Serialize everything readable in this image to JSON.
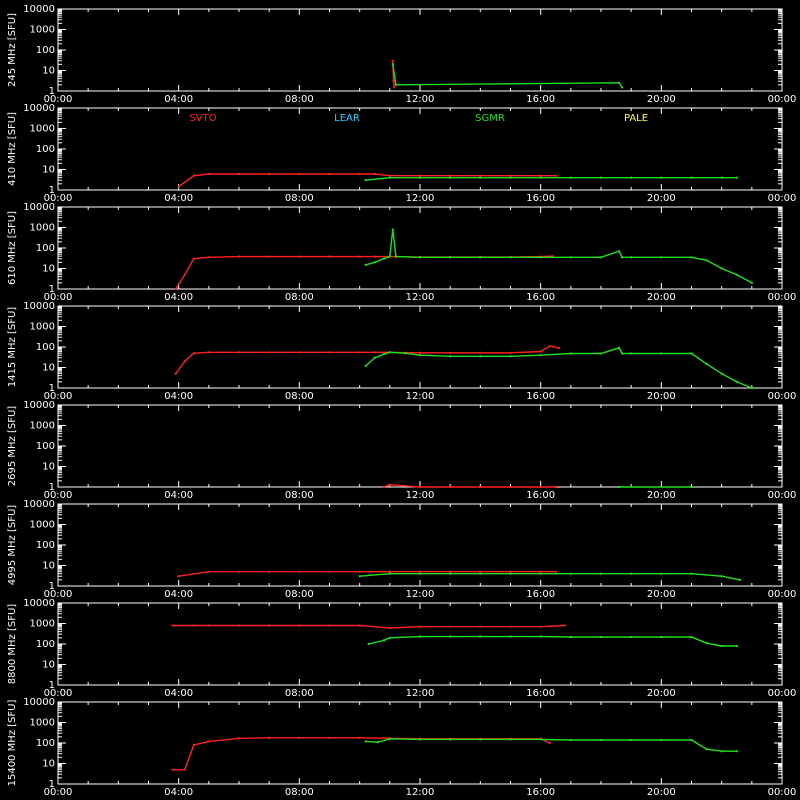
{
  "chart_data": {
    "type": "scatter",
    "x_ticks": [
      "00:00",
      "04:00",
      "08:00",
      "12:00",
      "16:00",
      "20:00",
      "00:00"
    ],
    "x_range_hours": [
      0,
      24
    ],
    "y_ticks": [
      "1",
      "10",
      "100",
      "1000",
      "10000"
    ],
    "y_range": [
      1,
      10000
    ],
    "y_scale": "log",
    "legend": [
      {
        "name": "SVTO",
        "color": "#ff2020"
      },
      {
        "name": "LEAR",
        "color": "#30d0ff"
      },
      {
        "name": "SGMR",
        "color": "#20e020"
      },
      {
        "name": "PALE",
        "color": "#ffff40"
      }
    ],
    "panels": [
      {
        "label": "245 MHz [SFU]",
        "series": [
          {
            "station": "SVTO",
            "color": "#ff2020",
            "points": [
              [
                11.1,
                30
              ],
              [
                11.12,
                3
              ],
              [
                11.15,
                1.5
              ]
            ]
          },
          {
            "station": "SGMR",
            "color": "#20e020",
            "points": [
              [
                11.1,
                20
              ],
              [
                11.2,
                2
              ],
              [
                18.6,
                2.5
              ],
              [
                18.7,
                1.5
              ]
            ]
          }
        ]
      },
      {
        "label": "410 MHz [SFU]",
        "series": [
          {
            "station": "SVTO",
            "color": "#ff2020",
            "points": [
              [
                4.0,
                1.5
              ],
              [
                4.5,
                5
              ],
              [
                5.0,
                6
              ],
              [
                6.0,
                6
              ],
              [
                7.0,
                6
              ],
              [
                8.0,
                6
              ],
              [
                9.0,
                6
              ],
              [
                10.0,
                6
              ],
              [
                10.5,
                6
              ],
              [
                11.0,
                5
              ],
              [
                12.0,
                5
              ],
              [
                13.0,
                5
              ],
              [
                14.0,
                5
              ],
              [
                15.0,
                5
              ],
              [
                16.0,
                5
              ],
              [
                16.5,
                5
              ]
            ]
          },
          {
            "station": "SGMR",
            "color": "#20e020",
            "points": [
              [
                10.2,
                3
              ],
              [
                11.0,
                4
              ],
              [
                12.0,
                4
              ],
              [
                13.0,
                4
              ],
              [
                14.0,
                4
              ],
              [
                15.0,
                4
              ],
              [
                16.0,
                4
              ],
              [
                17.0,
                4
              ],
              [
                18.0,
                4
              ],
              [
                19.0,
                4
              ],
              [
                20.0,
                4
              ],
              [
                21.0,
                4
              ],
              [
                22.0,
                4
              ],
              [
                22.5,
                4
              ]
            ]
          }
        ]
      },
      {
        "label": "610 MHz [SFU]",
        "series": [
          {
            "station": "SVTO",
            "color": "#ff2020",
            "points": [
              [
                3.9,
                1
              ],
              [
                4.2,
                5
              ],
              [
                4.5,
                30
              ],
              [
                5.0,
                35
              ],
              [
                6.0,
                38
              ],
              [
                7.0,
                38
              ],
              [
                8.0,
                38
              ],
              [
                9.0,
                38
              ],
              [
                10.0,
                38
              ],
              [
                10.5,
                38
              ],
              [
                11.0,
                38
              ],
              [
                12.0,
                36
              ],
              [
                13.0,
                36
              ],
              [
                14.0,
                36
              ],
              [
                15.0,
                36
              ],
              [
                16.0,
                38
              ],
              [
                16.4,
                40
              ]
            ]
          },
          {
            "station": "SGMR",
            "color": "#20e020",
            "points": [
              [
                10.2,
                15
              ],
              [
                10.5,
                20
              ],
              [
                10.8,
                30
              ],
              [
                11.0,
                38
              ],
              [
                11.1,
                800
              ],
              [
                11.2,
                38
              ],
              [
                12.0,
                35
              ],
              [
                13.0,
                35
              ],
              [
                14.0,
                35
              ],
              [
                15.0,
                35
              ],
              [
                16.0,
                35
              ],
              [
                17.0,
                35
              ],
              [
                18.0,
                35
              ],
              [
                18.6,
                70
              ],
              [
                18.7,
                35
              ],
              [
                19.0,
                35
              ],
              [
                20.0,
                35
              ],
              [
                21.0,
                35
              ],
              [
                21.5,
                25
              ],
              [
                22.0,
                10
              ],
              [
                22.5,
                5
              ],
              [
                23.0,
                2
              ]
            ]
          }
        ]
      },
      {
        "label": "1415 MHz [SFU]",
        "series": [
          {
            "station": "SVTO",
            "color": "#ff2020",
            "points": [
              [
                3.9,
                5
              ],
              [
                4.2,
                20
              ],
              [
                4.5,
                50
              ],
              [
                5.0,
                55
              ],
              [
                6.0,
                55
              ],
              [
                7.0,
                55
              ],
              [
                8.0,
                55
              ],
              [
                9.0,
                55
              ],
              [
                10.0,
                55
              ],
              [
                10.5,
                55
              ],
              [
                11.0,
                55
              ],
              [
                12.0,
                52
              ],
              [
                13.0,
                52
              ],
              [
                14.0,
                52
              ],
              [
                15.0,
                52
              ],
              [
                16.0,
                60
              ],
              [
                16.3,
                110
              ],
              [
                16.6,
                90
              ]
            ]
          },
          {
            "station": "SGMR",
            "color": "#20e020",
            "points": [
              [
                10.2,
                12
              ],
              [
                10.5,
                30
              ],
              [
                10.8,
                45
              ],
              [
                11.0,
                55
              ],
              [
                11.5,
                50
              ],
              [
                12.0,
                40
              ],
              [
                13.0,
                35
              ],
              [
                14.0,
                35
              ],
              [
                15.0,
                35
              ],
              [
                16.0,
                40
              ],
              [
                17.0,
                48
              ],
              [
                18.0,
                48
              ],
              [
                18.6,
                90
              ],
              [
                18.7,
                48
              ],
              [
                19.0,
                48
              ],
              [
                20.0,
                48
              ],
              [
                21.0,
                48
              ],
              [
                21.5,
                15
              ],
              [
                22.0,
                5
              ],
              [
                22.5,
                2
              ],
              [
                23.0,
                1
              ]
            ]
          }
        ]
      },
      {
        "label": "2695 MHz [SFU]",
        "series": [
          {
            "station": "SVTO",
            "color": "#ff2020",
            "points": [
              [
                10.8,
                1
              ],
              [
                11.0,
                1.3
              ],
              [
                12.0,
                1
              ],
              [
                13.0,
                1
              ],
              [
                14.0,
                1
              ],
              [
                15.0,
                1
              ],
              [
                16.0,
                1
              ],
              [
                16.5,
                1
              ]
            ]
          },
          {
            "station": "SGMR",
            "color": "#20e020",
            "points": [
              [
                18.6,
                1
              ],
              [
                21.0,
                1
              ]
            ]
          }
        ]
      },
      {
        "label": "4995 MHz [SFU]",
        "series": [
          {
            "station": "SVTO",
            "color": "#ff2020",
            "points": [
              [
                4.0,
                3
              ],
              [
                5.0,
                5
              ],
              [
                6.0,
                5
              ],
              [
                7.0,
                5
              ],
              [
                8.0,
                5
              ],
              [
                9.0,
                5
              ],
              [
                10.0,
                5
              ],
              [
                11.0,
                5
              ],
              [
                12.0,
                5
              ],
              [
                13.0,
                5
              ],
              [
                14.0,
                5
              ],
              [
                15.0,
                5
              ],
              [
                16.0,
                5
              ],
              [
                16.5,
                5
              ]
            ]
          },
          {
            "station": "SGMR",
            "color": "#20e020",
            "points": [
              [
                10.0,
                3
              ],
              [
                11.0,
                4
              ],
              [
                12.0,
                4
              ],
              [
                13.0,
                4
              ],
              [
                14.0,
                4
              ],
              [
                15.0,
                4
              ],
              [
                16.0,
                4
              ],
              [
                17.0,
                4
              ],
              [
                18.0,
                4
              ],
              [
                19.0,
                4
              ],
              [
                20.0,
                4
              ],
              [
                21.0,
                4
              ],
              [
                22.0,
                3
              ],
              [
                22.6,
                2
              ]
            ]
          }
        ]
      },
      {
        "label": "8800 MHz [SFU]",
        "series": [
          {
            "station": "SVTO",
            "color": "#ff2020",
            "points": [
              [
                3.8,
                800
              ],
              [
                4.5,
                800
              ],
              [
                5.0,
                800
              ],
              [
                6.0,
                800
              ],
              [
                7.0,
                800
              ],
              [
                8.0,
                800
              ],
              [
                9.0,
                800
              ],
              [
                10.0,
                800
              ],
              [
                11.0,
                600
              ],
              [
                12.0,
                700
              ],
              [
                13.0,
                700
              ],
              [
                14.0,
                700
              ],
              [
                15.0,
                700
              ],
              [
                16.0,
                700
              ],
              [
                16.8,
                800
              ]
            ]
          },
          {
            "station": "SGMR",
            "color": "#20e020",
            "points": [
              [
                10.3,
                100
              ],
              [
                10.8,
                150
              ],
              [
                11.0,
                200
              ],
              [
                12.0,
                230
              ],
              [
                13.0,
                230
              ],
              [
                14.0,
                230
              ],
              [
                15.0,
                230
              ],
              [
                16.0,
                230
              ],
              [
                17.0,
                220
              ],
              [
                18.0,
                220
              ],
              [
                19.0,
                220
              ],
              [
                20.0,
                220
              ],
              [
                21.0,
                220
              ],
              [
                21.5,
                110
              ],
              [
                22.0,
                80
              ],
              [
                22.5,
                80
              ]
            ]
          }
        ]
      },
      {
        "label": "15400 MHz [SFU]",
        "series": [
          {
            "station": "SVTO",
            "color": "#ff2020",
            "points": [
              [
                3.8,
                5
              ],
              [
                4.2,
                5
              ],
              [
                4.5,
                80
              ],
              [
                5.0,
                120
              ],
              [
                6.0,
                170
              ],
              [
                7.0,
                180
              ],
              [
                8.0,
                180
              ],
              [
                9.0,
                180
              ],
              [
                10.0,
                180
              ],
              [
                11.0,
                170
              ],
              [
                12.0,
                160
              ],
              [
                13.0,
                160
              ],
              [
                14.0,
                160
              ],
              [
                15.0,
                160
              ],
              [
                16.0,
                160
              ],
              [
                16.3,
                100
              ]
            ]
          },
          {
            "station": "SGMR",
            "color": "#20e020",
            "points": [
              [
                10.2,
                120
              ],
              [
                10.6,
                110
              ],
              [
                11.0,
                160
              ],
              [
                12.0,
                150
              ],
              [
                13.0,
                150
              ],
              [
                14.0,
                150
              ],
              [
                15.0,
                150
              ],
              [
                16.0,
                150
              ],
              [
                17.0,
                140
              ],
              [
                18.0,
                140
              ],
              [
                19.0,
                140
              ],
              [
                20.0,
                140
              ],
              [
                21.0,
                140
              ],
              [
                21.5,
                50
              ],
              [
                22.0,
                40
              ],
              [
                22.5,
                40
              ]
            ]
          }
        ]
      }
    ]
  }
}
